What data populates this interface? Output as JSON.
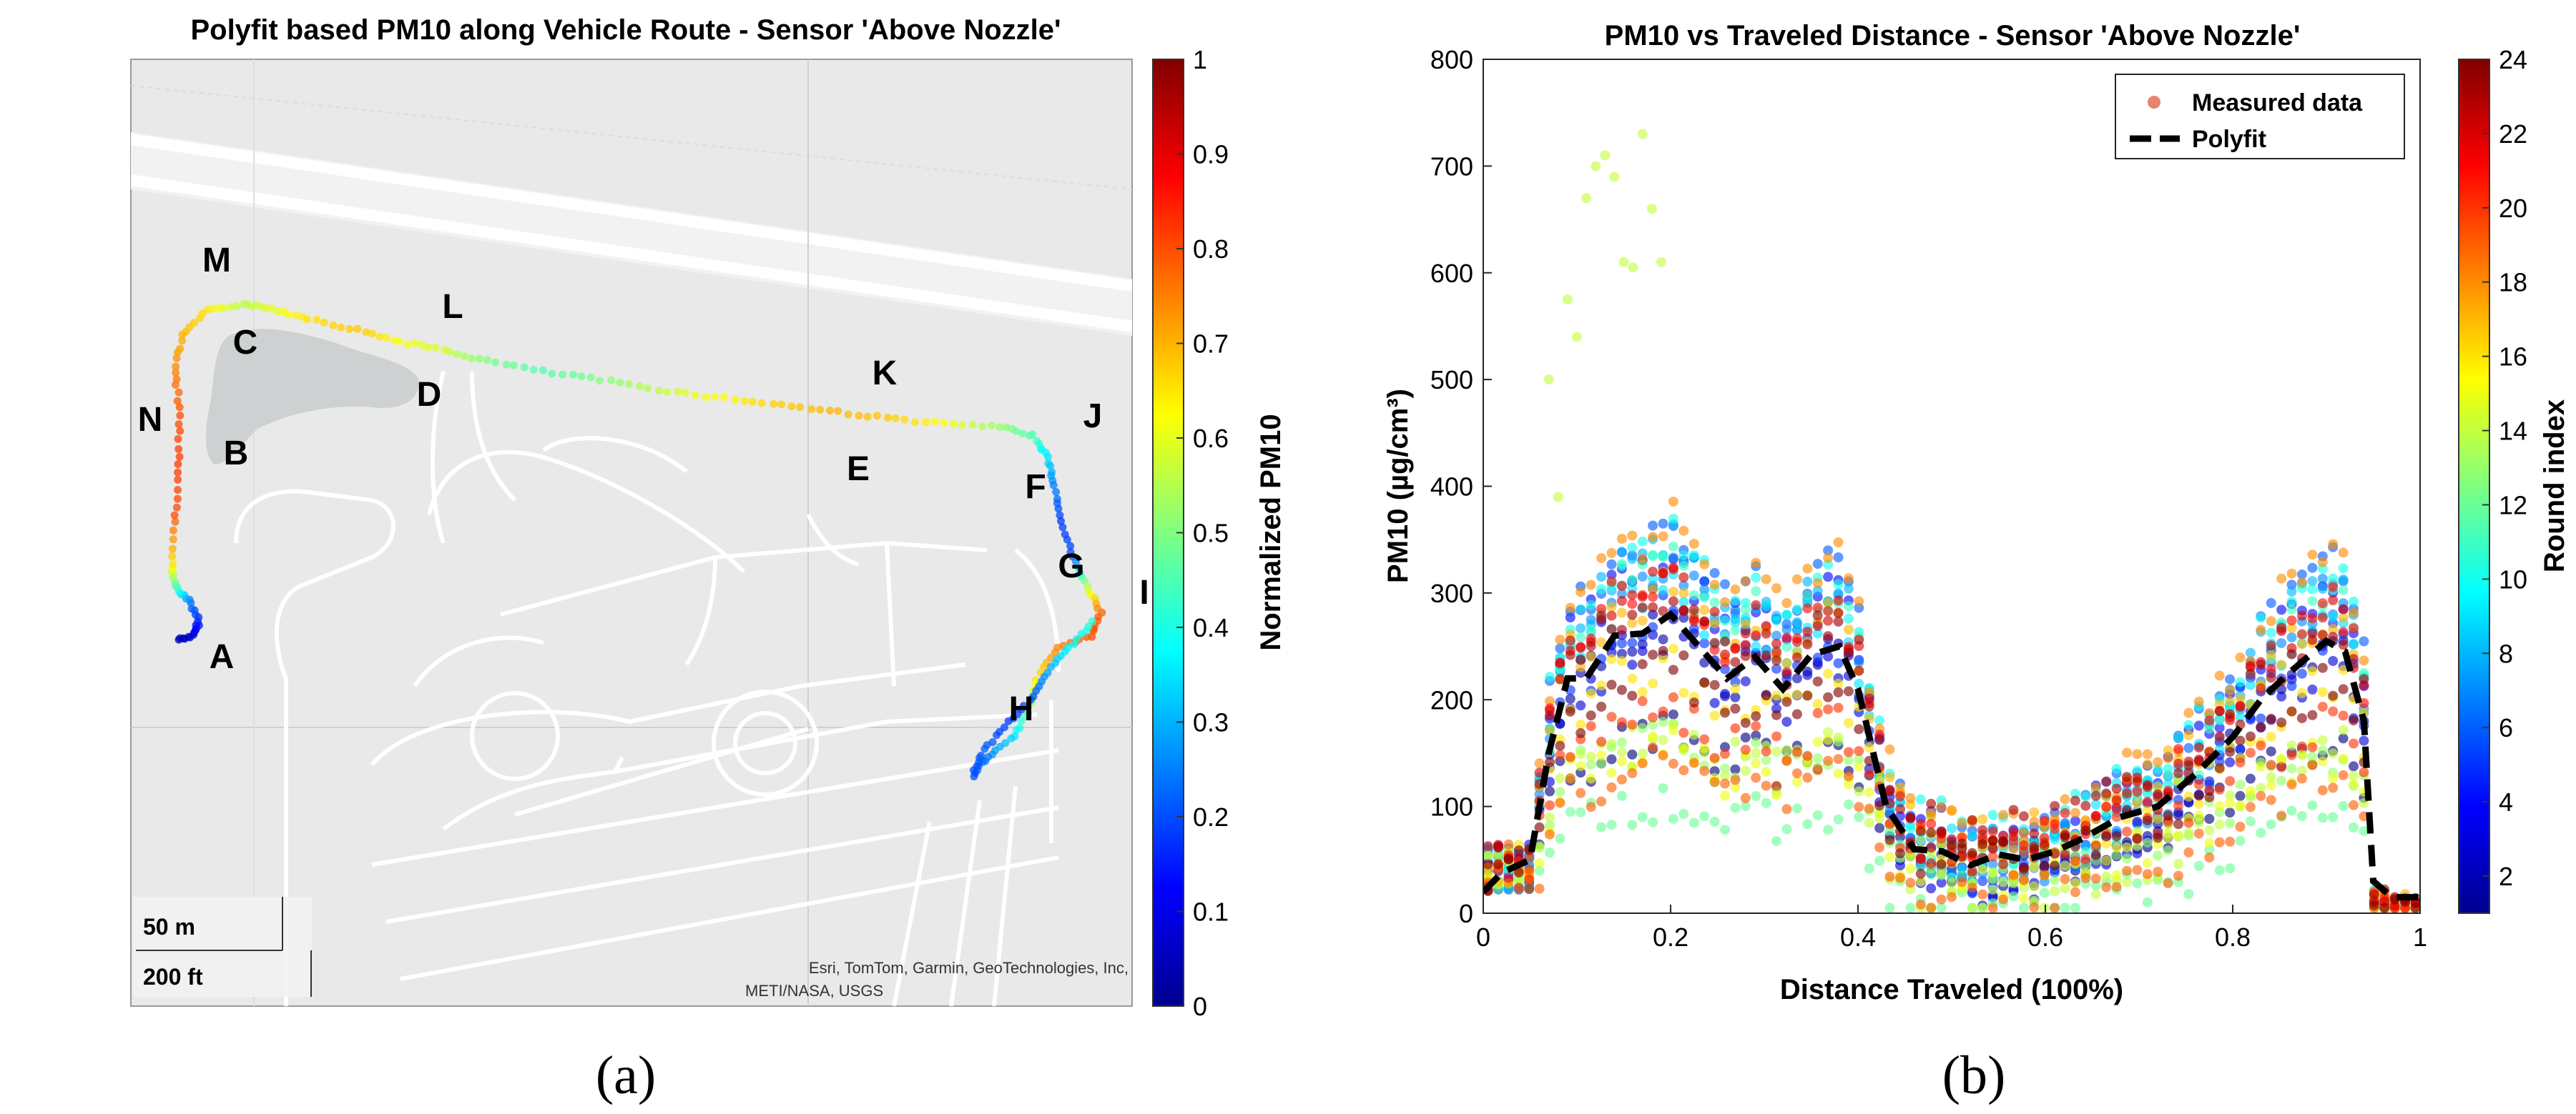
{
  "chart_data": [
    {
      "type": "map",
      "title": "Polyfit based PM10 along Vehicle Route - Sensor 'Above Nozzle'",
      "colorbar": {
        "label": "Normalized PM10",
        "range": [
          0,
          1
        ],
        "ticks": [
          "0",
          "0.1",
          "0.2",
          "0.3",
          "0.4",
          "0.5",
          "0.6",
          "0.7",
          "0.8",
          "0.9",
          "1"
        ]
      },
      "point_labels": [
        "A",
        "B",
        "C",
        "D",
        "E",
        "F",
        "G",
        "H",
        "I",
        "J",
        "K",
        "L",
        "M",
        "N"
      ],
      "scale_bar": [
        "50 m",
        "200 ft"
      ],
      "attribution": [
        "Esri, TomTom, Garmin, GeoTechnologies, Inc,",
        "METI/NASA, USGS"
      ],
      "route_pm10_along_path": [
        0.05,
        0.08,
        0.15,
        0.25,
        0.45,
        0.65,
        0.8,
        0.82,
        0.8,
        0.75,
        0.7,
        0.65,
        0.55,
        0.6,
        0.65,
        0.68,
        0.62,
        0.58,
        0.5,
        0.45,
        0.5,
        0.56,
        0.62,
        0.67,
        0.7,
        0.68,
        0.62,
        0.52,
        0.45,
        0.35,
        0.25,
        0.18,
        0.2,
        0.55,
        0.78,
        0.8,
        0.75,
        0.65,
        0.5,
        0.35,
        0.25,
        0.2,
        0.22,
        0.18,
        0.2,
        0.3,
        0.38,
        0.42
      ]
    },
    {
      "type": "scatter",
      "title": "PM10 vs Traveled Distance - Sensor 'Above Nozzle'",
      "xlabel": "Distance Traveled (100%)",
      "ylabel": "PM10 (µg/cm³)",
      "xlim": [
        0,
        1
      ],
      "ylim": [
        0,
        800
      ],
      "xticks": [
        "0",
        "0.2",
        "0.4",
        "0.6",
        "0.8",
        "1"
      ],
      "yticks": [
        "0",
        "100",
        "200",
        "300",
        "400",
        "500",
        "600",
        "700",
        "800"
      ],
      "colorbar": {
        "label": "Round index",
        "range": [
          1,
          24
        ],
        "ticks": [
          "2",
          "4",
          "6",
          "8",
          "10",
          "12",
          "14",
          "16",
          "18",
          "20",
          "22",
          "24"
        ]
      },
      "legend": [
        "Measured data",
        "Polyfit"
      ],
      "polyfit": {
        "x": [
          0,
          0.02,
          0.05,
          0.07,
          0.09,
          0.11,
          0.14,
          0.17,
          0.2,
          0.23,
          0.26,
          0.29,
          0.32,
          0.35,
          0.38,
          0.4,
          0.43,
          0.46,
          0.49,
          0.52,
          0.55,
          0.58,
          0.61,
          0.64,
          0.68,
          0.72,
          0.76,
          0.8,
          0.83,
          0.86,
          0.88,
          0.9,
          0.92,
          0.94,
          0.95,
          0.97,
          1.0
        ],
        "y": [
          20,
          38,
          50,
          150,
          220,
          220,
          260,
          262,
          280,
          250,
          220,
          240,
          210,
          242,
          250,
          210,
          100,
          60,
          58,
          45,
          55,
          50,
          58,
          70,
          90,
          100,
          130,
          165,
          200,
          225,
          240,
          255,
          245,
          180,
          30,
          15,
          15
        ]
      },
      "measured_rounds": 24
    }
  ],
  "panel_labels": [
    "(a)",
    "(b)"
  ]
}
